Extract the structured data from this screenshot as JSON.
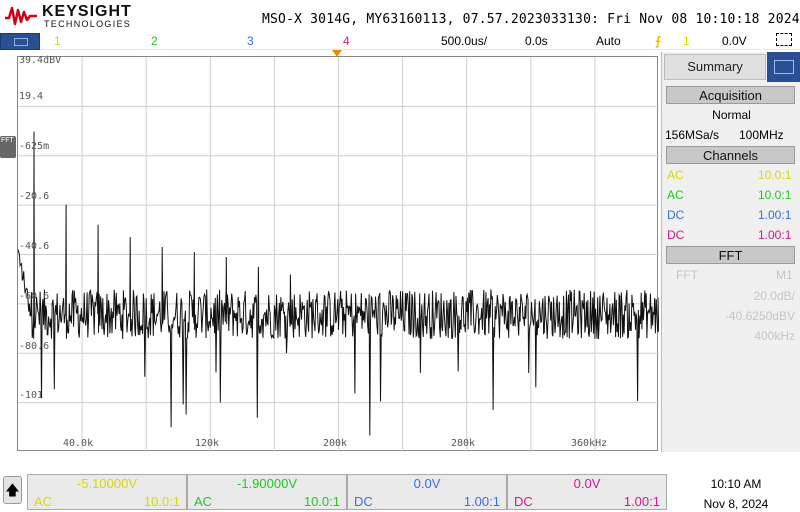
{
  "header": {
    "brand": "KEYSIGHT",
    "brand_sub": "TECHNOLOGIES",
    "title": "MSO-X 3014G, MY63160113, 07.57.2023033130: Fri Nov 08 10:10:18 2024"
  },
  "status_bar": {
    "channels": [
      {
        "label": "1",
        "color": "#d8d800"
      },
      {
        "label": "2",
        "color": "#22c722"
      },
      {
        "label": "3",
        "color": "#3b6de0"
      },
      {
        "label": "4",
        "color": "#d6178c"
      }
    ],
    "timebase": "500.0us/",
    "delay": "0.0s",
    "trigger_mode": "Auto",
    "trigger_source": "1",
    "trigger_level": "0.0V"
  },
  "scope": {
    "y_labels": [
      "39.4dBV",
      "19.4",
      "-625m",
      "-20.6",
      "-40.6",
      "-60.6",
      "-80.6",
      "-101"
    ],
    "x_labels": [
      "40.0k",
      "120k",
      "200k",
      "280k",
      "360kHz"
    ],
    "fft_marker": "FFT"
  },
  "chart_data": {
    "type": "line",
    "title": "",
    "xlabel": "",
    "ylabel": "",
    "xlim": [
      0,
      400000
    ],
    "ylim": [
      -119.4,
      39.4
    ],
    "x_unit": "Hz",
    "y_unit": "dBV",
    "harmonics": [
      {
        "x": 10000,
        "y": 9.4
      },
      {
        "x": 30000,
        "y": -20.0
      },
      {
        "x": 50000,
        "y": -28.0
      },
      {
        "x": 70000,
        "y": -33.0
      },
      {
        "x": 90000,
        "y": -37.0
      },
      {
        "x": 110000,
        "y": -39.0
      },
      {
        "x": 130000,
        "y": -41.0
      },
      {
        "x": 150000,
        "y": -45.0
      },
      {
        "x": 170000,
        "y": -48.0
      }
    ],
    "noise_floor": -64.0,
    "noise_spread": 10.0,
    "color": "#111111"
  },
  "panel": {
    "tab": "Summary",
    "acquisition_title": "Acquisition",
    "acq_mode": "Normal",
    "sample_rate": "156MSa/s",
    "bandwidth": "100MHz",
    "channels_title": "Channels",
    "channel_rows": [
      {
        "coupling": "AC",
        "probe": "10.0:1",
        "color": "#d8d800"
      },
      {
        "coupling": "AC",
        "probe": "10.0:1",
        "color": "#22c722"
      },
      {
        "coupling": "DC",
        "probe": "1.00:1",
        "color": "#3b6de0"
      },
      {
        "coupling": "DC",
        "probe": "1.00:1",
        "color": "#d6178c"
      }
    ],
    "fft_title": "FFT",
    "fft_label": "FFT",
    "fft_source": "M1",
    "fft_scale": "20.0dB/",
    "fft_offset": "-40.6250dBV",
    "fft_span": "400kHz"
  },
  "bottom": {
    "channels": [
      {
        "offset": "-5.10000V",
        "coupling": "AC",
        "probe": "10.0:1",
        "color": "#d8d800"
      },
      {
        "offset": "-1.90000V",
        "coupling": "AC",
        "probe": "10.0:1",
        "color": "#22c722"
      },
      {
        "offset": "0.0V",
        "coupling": "DC",
        "probe": "1.00:1",
        "color": "#3b6de0"
      },
      {
        "offset": "0.0V",
        "coupling": "DC",
        "probe": "1.00:1",
        "color": "#d6178c"
      }
    ],
    "time": "10:10 AM",
    "date": "Nov 8, 2024"
  }
}
